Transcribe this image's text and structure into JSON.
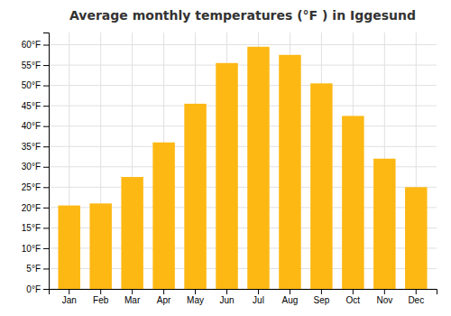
{
  "chart_data": {
    "type": "bar",
    "title": "Average monthly temperatures (°F ) in Iggesund",
    "categories": [
      "Jan",
      "Feb",
      "Mar",
      "Apr",
      "May",
      "Jun",
      "Jul",
      "Aug",
      "Sep",
      "Oct",
      "Nov",
      "Dec"
    ],
    "values": [
      20.5,
      21.0,
      27.5,
      36.0,
      45.5,
      55.5,
      59.5,
      57.5,
      50.5,
      42.5,
      32.0,
      25.0
    ],
    "color": "#FDB813",
    "ylim": [
      0,
      63
    ],
    "yticks": [
      {
        "value": 0,
        "label": "0°F"
      },
      {
        "value": 5,
        "label": "5°F"
      },
      {
        "value": 10,
        "label": "10°F"
      },
      {
        "value": 15,
        "label": "15°F"
      },
      {
        "value": 20,
        "label": "20°F"
      },
      {
        "value": 25,
        "label": "25°F"
      },
      {
        "value": 30,
        "label": "30°F"
      },
      {
        "value": 35,
        "label": "35°F"
      },
      {
        "value": 40,
        "label": "40°F"
      },
      {
        "value": 45,
        "label": "45°F"
      },
      {
        "value": 50,
        "label": "50°F"
      },
      {
        "value": 55,
        "label": "55°F"
      },
      {
        "value": 60,
        "label": "60°F"
      }
    ],
    "grid": true
  }
}
